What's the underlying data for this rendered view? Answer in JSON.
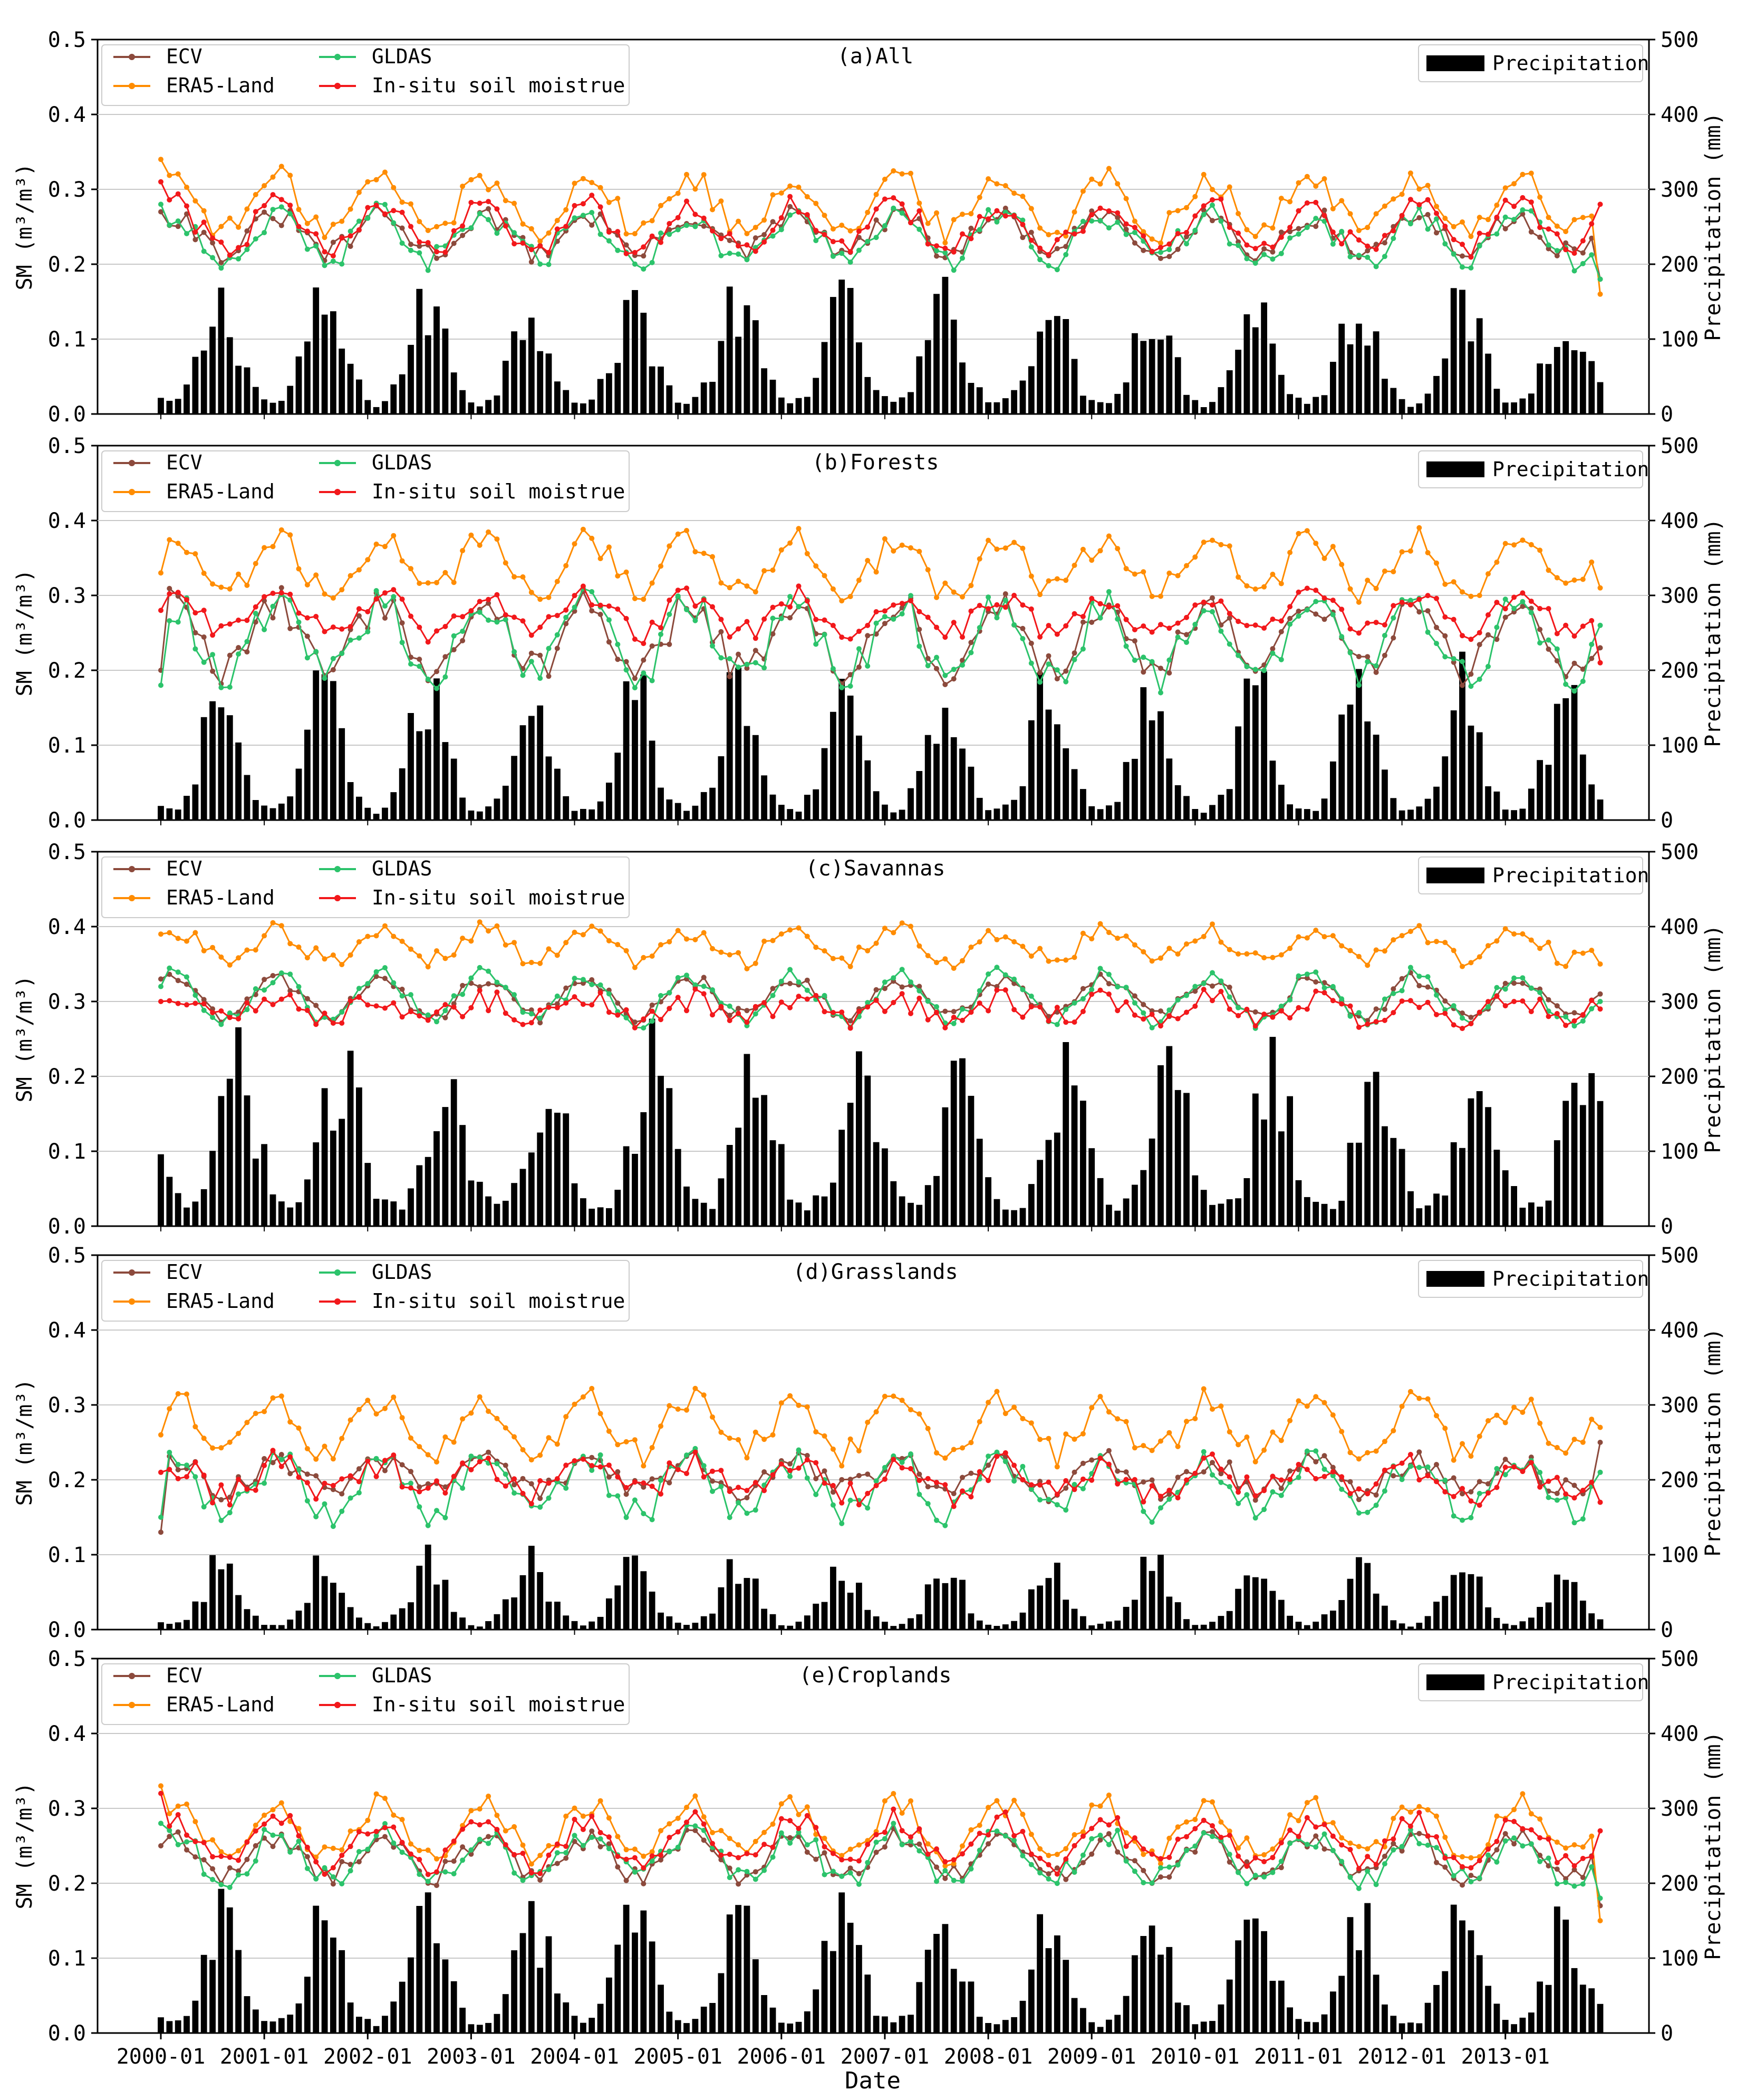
{
  "figure": {
    "xlabel": "Date",
    "colors": {
      "ecv": "#8c4a3c",
      "era5": "#ff8c00",
      "gldas": "#2cc36b",
      "insitu": "#f2181b",
      "precip": "#000000",
      "grid": "#c8c8c8"
    },
    "x_tick_labels": [
      "2000-01",
      "2001-01",
      "2002-01",
      "2003-01",
      "2004-01",
      "2005-01",
      "2006-01",
      "2007-01",
      "2008-01",
      "2009-01",
      "2010-01",
      "2011-01",
      "2012-01",
      "2013-01"
    ]
  },
  "chart_data": [
    {
      "type": "line+bar",
      "title": "(a)All",
      "ylabel_left": "SM  (m³/m³)",
      "ylabel_right": "Precipitation  (mm)",
      "ylim_left": [
        0,
        0.5
      ],
      "ylim_right": [
        0,
        500
      ],
      "left_ticks": [
        "0.0",
        "0.1",
        "0.2",
        "0.3",
        "0.4",
        "0.5"
      ],
      "right_ticks": [
        "0",
        "100",
        "200",
        "300",
        "400",
        "500"
      ],
      "legend": [
        "ECV",
        "GLDAS",
        "ERA5-Land",
        "In-situ soil moistrue",
        "Precipitation"
      ],
      "x_start": "2000-01",
      "n_months": 168,
      "series": {
        "ecv": {
          "name": "ECV",
          "base": 0.24,
          "amp": 0.025,
          "noise": 0.015,
          "start": 0.27,
          "end": 0.18
        },
        "gldas": {
          "name": "GLDAS",
          "base": 0.235,
          "amp": 0.03,
          "noise": 0.018,
          "start": 0.28,
          "end": 0.18
        },
        "era5": {
          "name": "ERA5-Land",
          "base": 0.28,
          "amp": 0.035,
          "noise": 0.018,
          "start": 0.34,
          "end": 0.16
        },
        "insitu": {
          "name": "In-situ soil moistrue",
          "base": 0.25,
          "amp": 0.03,
          "noise": 0.016,
          "start": 0.31,
          "end": 0.28
        }
      },
      "precip": {
        "name": "Precipitation",
        "peak": 140,
        "min": 10,
        "peak_month": 7,
        "width": 2.2
      }
    },
    {
      "type": "line+bar",
      "title": "(b)Forests",
      "ylabel_left": "SM  (m³/m³)",
      "ylabel_right": "Precipitation  (mm)",
      "ylim_left": [
        0,
        0.5
      ],
      "ylim_right": [
        0,
        500
      ],
      "left_ticks": [
        "0.0",
        "0.1",
        "0.2",
        "0.3",
        "0.4",
        "0.5"
      ],
      "right_ticks": [
        "0",
        "100",
        "200",
        "300",
        "400",
        "500"
      ],
      "legend": [
        "ECV",
        "GLDAS",
        "ERA5-Land",
        "In-situ soil moistrue",
        "Precipitation"
      ],
      "x_start": "2000-01",
      "n_months": 168,
      "series": {
        "ecv": {
          "name": "ECV",
          "base": 0.245,
          "amp": 0.045,
          "noise": 0.022,
          "start": 0.2,
          "end": 0.23
        },
        "gldas": {
          "name": "GLDAS",
          "base": 0.24,
          "amp": 0.05,
          "noise": 0.025,
          "start": 0.18,
          "end": 0.26
        },
        "era5": {
          "name": "ERA5-Land",
          "base": 0.34,
          "amp": 0.035,
          "noise": 0.018,
          "start": 0.33,
          "end": 0.31
        },
        "insitu": {
          "name": "In-situ soil moistrue",
          "base": 0.275,
          "amp": 0.025,
          "noise": 0.015,
          "start": 0.28,
          "end": 0.21
        }
      },
      "precip": {
        "name": "Precipitation",
        "peak": 170,
        "min": 10,
        "peak_month": 7,
        "width": 2.0
      }
    },
    {
      "type": "line+bar",
      "title": "(c)Savannas",
      "ylabel_left": "SM  (m³/m³)",
      "ylabel_right": "Precipitation  (mm)",
      "ylim_left": [
        0,
        0.5
      ],
      "ylim_right": [
        0,
        500
      ],
      "left_ticks": [
        "0.0",
        "0.1",
        "0.2",
        "0.3",
        "0.4",
        "0.5"
      ],
      "right_ticks": [
        "0",
        "100",
        "200",
        "300",
        "400",
        "500"
      ],
      "legend": [
        "ECV",
        "GLDAS",
        "ERA5-Land",
        "In-situ soil moistrue",
        "Precipitation"
      ],
      "x_start": "2000-01",
      "n_months": 168,
      "series": {
        "ecv": {
          "name": "ECV",
          "base": 0.305,
          "amp": 0.025,
          "noise": 0.01,
          "start": 0.33,
          "end": 0.31
        },
        "gldas": {
          "name": "GLDAS",
          "base": 0.305,
          "amp": 0.03,
          "noise": 0.012,
          "start": 0.32,
          "end": 0.3
        },
        "era5": {
          "name": "ERA5-Land",
          "base": 0.375,
          "amp": 0.02,
          "noise": 0.012,
          "start": 0.39,
          "end": 0.35
        },
        "insitu": {
          "name": "In-situ soil moistrue",
          "base": 0.29,
          "amp": 0.012,
          "noise": 0.015,
          "start": 0.3,
          "end": 0.29
        }
      },
      "precip": {
        "name": "Precipitation",
        "peak": 210,
        "min": 25,
        "peak_month": 9,
        "width": 2.0
      }
    },
    {
      "type": "line+bar",
      "title": "(d)Grasslands",
      "ylabel_left": "SM  (m³/m³)",
      "ylabel_right": "Precipitation  (mm)",
      "ylim_left": [
        0,
        0.5
      ],
      "ylim_right": [
        0,
        500
      ],
      "left_ticks": [
        "0.0",
        "0.1",
        "0.2",
        "0.3",
        "0.4",
        "0.5"
      ],
      "right_ticks": [
        "0",
        "100",
        "200",
        "300",
        "400",
        "500"
      ],
      "legend": [
        "ECV",
        "GLDAS",
        "ERA5-Land",
        "In-situ soil moistrue",
        "Precipitation"
      ],
      "x_start": "2000-01",
      "n_months": 168,
      "series": {
        "ecv": {
          "name": "ECV",
          "base": 0.205,
          "amp": 0.02,
          "noise": 0.015,
          "start": 0.13,
          "end": 0.25
        },
        "gldas": {
          "name": "GLDAS",
          "base": 0.19,
          "amp": 0.035,
          "noise": 0.02,
          "start": 0.15,
          "end": 0.21
        },
        "era5": {
          "name": "ERA5-Land",
          "base": 0.27,
          "amp": 0.035,
          "noise": 0.02,
          "start": 0.26,
          "end": 0.27
        },
        "insitu": {
          "name": "In-situ soil moistrue",
          "base": 0.2,
          "amp": 0.02,
          "noise": 0.02,
          "start": 0.21,
          "end": 0.17
        }
      },
      "precip": {
        "name": "Precipitation",
        "peak": 85,
        "min": 5,
        "peak_month": 7,
        "width": 2.0
      }
    },
    {
      "type": "line+bar",
      "title": "(e)Croplands",
      "ylabel_left": "SM  (m³/m³)",
      "ylabel_right": "Precipitation  (mm)",
      "ylim_left": [
        0,
        0.5
      ],
      "ylim_right": [
        0,
        500
      ],
      "left_ticks": [
        "0.0",
        "0.1",
        "0.2",
        "0.3",
        "0.4",
        "0.5"
      ],
      "right_ticks": [
        "0",
        "100",
        "200",
        "300",
        "400",
        "500"
      ],
      "legend": [
        "ECV",
        "GLDAS",
        "ERA5-Land",
        "In-situ soil moistrue",
        "Precipitation"
      ],
      "x_start": "2000-01",
      "n_months": 168,
      "series": {
        "ecv": {
          "name": "ECV",
          "base": 0.235,
          "amp": 0.025,
          "noise": 0.014,
          "start": 0.25,
          "end": 0.17
        },
        "gldas": {
          "name": "GLDAS",
          "base": 0.235,
          "amp": 0.03,
          "noise": 0.016,
          "start": 0.28,
          "end": 0.18
        },
        "era5": {
          "name": "ERA5-Land",
          "base": 0.27,
          "amp": 0.035,
          "noise": 0.016,
          "start": 0.33,
          "end": 0.15
        },
        "insitu": {
          "name": "In-situ soil moistrue",
          "base": 0.255,
          "amp": 0.03,
          "noise": 0.015,
          "start": 0.32,
          "end": 0.27
        }
      },
      "precip": {
        "name": "Precipitation",
        "peak": 145,
        "min": 10,
        "peak_month": 7,
        "width": 2.1
      }
    }
  ]
}
